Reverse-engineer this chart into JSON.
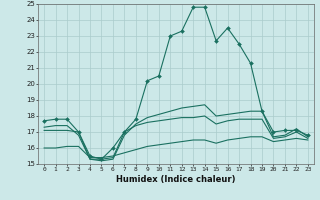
{
  "background_color": "#cce8e8",
  "grid_color": "#aacccc",
  "line_color": "#1a7060",
  "xlabel": "Humidex (Indice chaleur)",
  "ylim": [
    15,
    25
  ],
  "xlim": [
    -0.5,
    23.5
  ],
  "yticks": [
    15,
    16,
    17,
    18,
    19,
    20,
    21,
    22,
    23,
    24,
    25
  ],
  "xticks": [
    0,
    1,
    2,
    3,
    4,
    5,
    6,
    7,
    8,
    9,
    10,
    11,
    12,
    13,
    14,
    15,
    16,
    17,
    18,
    19,
    20,
    21,
    22,
    23
  ],
  "line1_x": [
    0,
    1,
    2,
    3,
    4,
    5,
    6,
    7,
    8,
    9,
    10,
    11,
    12,
    13,
    14,
    15,
    16,
    17,
    18,
    19,
    20,
    21,
    22,
    23
  ],
  "line1_y": [
    17.7,
    17.8,
    17.8,
    17.0,
    15.5,
    15.3,
    16.0,
    17.0,
    17.8,
    20.2,
    20.5,
    23.0,
    23.3,
    24.8,
    24.8,
    22.7,
    23.5,
    22.5,
    21.3,
    18.3,
    17.0,
    17.1,
    17.1,
    16.8
  ],
  "line2_x": [
    0,
    1,
    2,
    3,
    4,
    5,
    6,
    7,
    8,
    9,
    10,
    11,
    12,
    13,
    14,
    15,
    16,
    17,
    18,
    19,
    20,
    21,
    22,
    23
  ],
  "line2_y": [
    17.3,
    17.4,
    17.4,
    16.8,
    15.3,
    15.2,
    15.3,
    16.8,
    17.5,
    17.9,
    18.1,
    18.3,
    18.5,
    18.6,
    18.7,
    18.0,
    18.1,
    18.2,
    18.3,
    18.3,
    16.7,
    16.8,
    17.2,
    16.7
  ],
  "line3_x": [
    0,
    1,
    2,
    3,
    4,
    5,
    6,
    7,
    8,
    9,
    10,
    11,
    12,
    13,
    14,
    15,
    16,
    17,
    18,
    19,
    20,
    21,
    22,
    23
  ],
  "line3_y": [
    17.1,
    17.1,
    17.1,
    17.0,
    15.3,
    15.3,
    15.4,
    17.0,
    17.4,
    17.6,
    17.7,
    17.8,
    17.9,
    17.9,
    18.0,
    17.5,
    17.7,
    17.8,
    17.8,
    17.8,
    16.6,
    16.7,
    17.0,
    16.6
  ],
  "line4_x": [
    0,
    1,
    2,
    3,
    4,
    5,
    6,
    7,
    8,
    9,
    10,
    11,
    12,
    13,
    14,
    15,
    16,
    17,
    18,
    19,
    20,
    21,
    22,
    23
  ],
  "line4_y": [
    16.0,
    16.0,
    16.1,
    16.1,
    15.4,
    15.4,
    15.5,
    15.7,
    15.9,
    16.1,
    16.2,
    16.3,
    16.4,
    16.5,
    16.5,
    16.3,
    16.5,
    16.6,
    16.7,
    16.7,
    16.4,
    16.5,
    16.6,
    16.5
  ]
}
